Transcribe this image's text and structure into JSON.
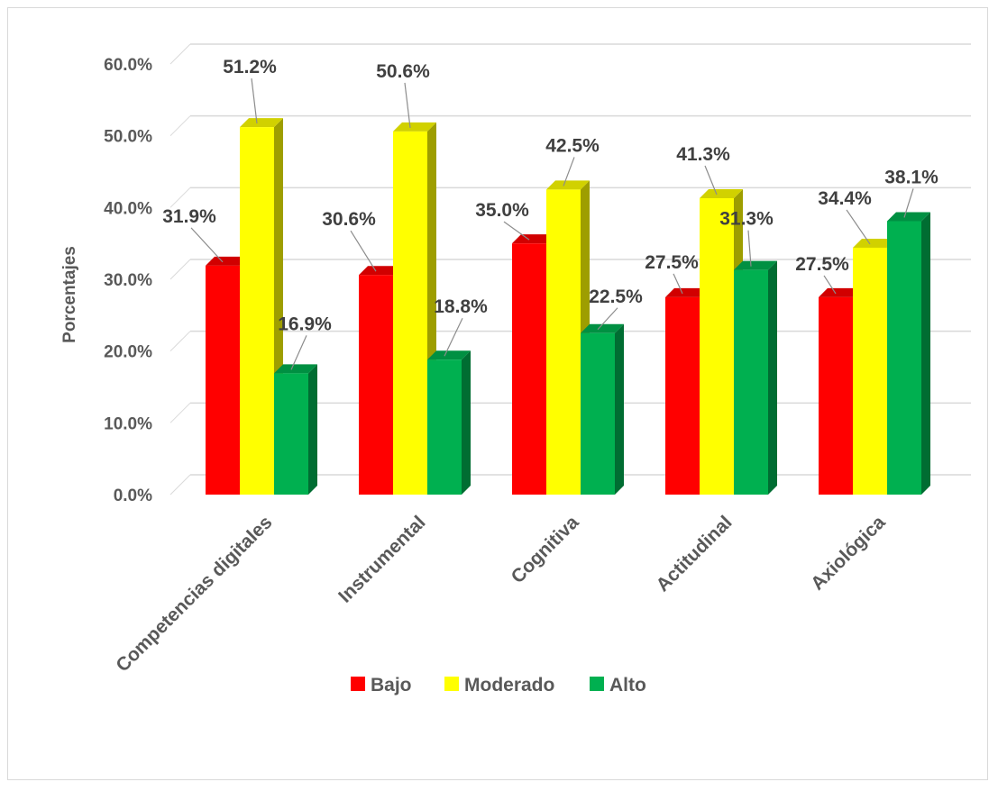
{
  "chart_data": {
    "type": "bar",
    "style": "3d-clustered-column",
    "title": "",
    "xlabel": "",
    "ylabel": "Porcentajes",
    "ylim": [
      0,
      60
    ],
    "yticks": [
      "0.0%",
      "10.0%",
      "20.0%",
      "30.0%",
      "40.0%",
      "50.0%",
      "60.0%"
    ],
    "categories": [
      "Competencias digitales",
      "Instrumental",
      "Cognitiva",
      "Actitudinal",
      "Axiológica"
    ],
    "series": [
      {
        "name": "Bajo",
        "color": "#ff0000",
        "values": [
          31.9,
          30.6,
          35.0,
          27.5,
          27.5
        ],
        "labels": [
          "31.9%",
          "30.6%",
          "35.0%",
          "27.5%",
          "27.5%"
        ]
      },
      {
        "name": "Moderado",
        "color": "#ffff00",
        "values": [
          51.2,
          50.6,
          42.5,
          41.3,
          34.4
        ],
        "labels": [
          "51.2%",
          "50.6%",
          "42.5%",
          "41.3%",
          "34.4%"
        ]
      },
      {
        "name": "Alto",
        "color": "#00b050",
        "values": [
          16.9,
          18.8,
          22.5,
          31.3,
          38.1
        ],
        "labels": [
          "16.9%",
          "18.8%",
          "22.5%",
          "31.3%",
          "38.1%"
        ]
      }
    ],
    "grid": true,
    "legend_position": "bottom"
  }
}
